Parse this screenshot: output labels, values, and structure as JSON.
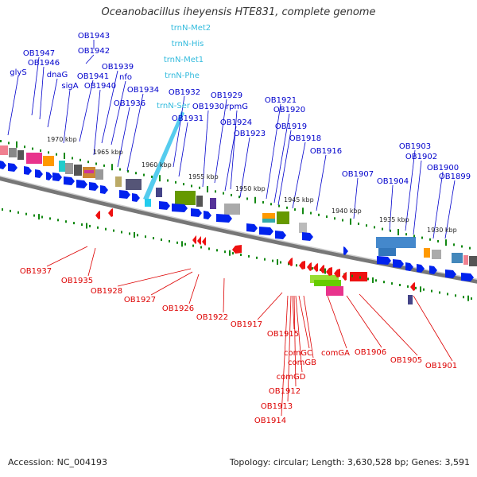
{
  "title": "Oceanobacillus iheyensis HTE831, complete genome",
  "footer": {
    "accession": "Accession: NC_004193",
    "summary": "Topology: circular; Length: 3,630,528 bp; Genes: 3,591"
  },
  "colors": {
    "forward_label": "#0000cc",
    "reverse_label": "#dd0000",
    "trna_label": "#33bbdd",
    "forward_arrow": "#0022ee",
    "reverse_arrow": "#ee1111",
    "tick": "#118811",
    "backbone": "#888888"
  },
  "kbp_ticks": [
    "1970 kbp",
    "1965 kbp",
    "1960 kbp",
    "1955 kbp",
    "1950 kbp",
    "1945 kbp",
    "1940 kbp",
    "1935 kbp",
    "1930 kbp"
  ],
  "forward_labels": [
    "OB1943",
    "OB1947",
    "OB1942",
    "OB1946",
    "glyS",
    "dnaG",
    "OB1939",
    "OB1941",
    "nfo",
    "sigA",
    "OB1940",
    "OB1934",
    "OB1936",
    "OB1932",
    "OB1929",
    "OB1930",
    "rpmG",
    "OB1931",
    "OB1921",
    "OB1920",
    "OB1924",
    "OB1919",
    "OB1923",
    "OB1918",
    "OB1916",
    "OB1903",
    "OB1902",
    "OB1907",
    "OB1900",
    "OB1904",
    "OB1899"
  ],
  "trna_labels": [
    "trnN-Met2",
    "trnN-His",
    "trnN-Met1",
    "trnN-Phe",
    "trnN-Ser"
  ],
  "reverse_labels": [
    "OB1937",
    "OB1935",
    "OB1928",
    "OB1927",
    "OB1926",
    "OB1922",
    "OB1917",
    "OB1915",
    "comGC",
    "comGB",
    "comGA",
    "OB1906",
    "OB1905",
    "OB1901",
    "comGD",
    "OB1912",
    "OB1913",
    "OB1914"
  ]
}
